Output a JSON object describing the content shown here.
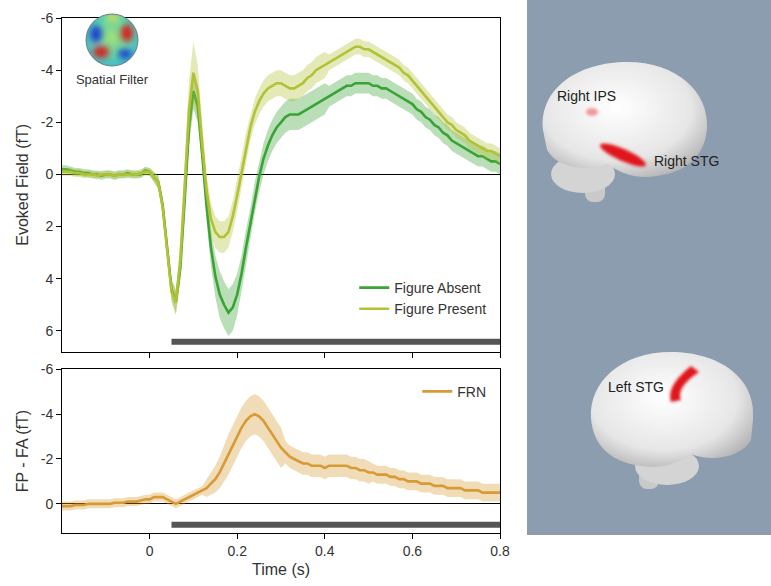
{
  "chart_data": [
    {
      "type": "line",
      "y_label": "Evoked Field (fT)",
      "x": [
        -0.2,
        -0.19,
        -0.18,
        -0.17,
        -0.16,
        -0.15,
        -0.14,
        -0.13,
        -0.12,
        -0.11,
        -0.1,
        -0.09,
        -0.08,
        -0.07,
        -0.06,
        -0.05,
        -0.04,
        -0.03,
        -0.02,
        -0.01,
        0,
        0.01,
        0.02,
        0.03,
        0.04,
        0.05,
        0.06,
        0.07,
        0.08,
        0.09,
        0.1,
        0.11,
        0.12,
        0.13,
        0.14,
        0.15,
        0.16,
        0.17,
        0.18,
        0.19,
        0.2,
        0.21,
        0.22,
        0.23,
        0.24,
        0.25,
        0.26,
        0.27,
        0.28,
        0.29,
        0.3,
        0.31,
        0.32,
        0.33,
        0.34,
        0.35,
        0.36,
        0.37,
        0.38,
        0.39,
        0.4,
        0.41,
        0.42,
        0.43,
        0.44,
        0.45,
        0.46,
        0.47,
        0.48,
        0.49,
        0.5,
        0.51,
        0.52,
        0.53,
        0.54,
        0.55,
        0.56,
        0.57,
        0.58,
        0.59,
        0.6,
        0.61,
        0.62,
        0.63,
        0.64,
        0.65,
        0.66,
        0.67,
        0.68,
        0.69,
        0.7,
        0.71,
        0.72,
        0.73,
        0.74,
        0.75,
        0.76,
        0.77,
        0.78,
        0.79,
        0.8
      ],
      "xlim": [
        -0.2,
        0.8
      ],
      "xticks": [
        0,
        0.2,
        0.4,
        0.6,
        0.8
      ],
      "ylim": [
        6.8,
        -6
      ],
      "yticks": [
        -6,
        -4,
        -2,
        0,
        2,
        4,
        6
      ],
      "grid": false,
      "legend": "lower right",
      "tick_labels": "y",
      "significant_interval": [
        0.05,
        0.8
      ],
      "series": [
        {
          "name": "Figure Absent",
          "color": "#3aa335",
          "values": [
            -0.2,
            -0.2,
            -0.15,
            -0.1,
            -0.1,
            -0.05,
            -0.05,
            0,
            0,
            0.05,
            0,
            0,
            0.05,
            0,
            0,
            -0.05,
            0,
            0,
            0,
            -0.15,
            -0.1,
            0.1,
            0.3,
            1.2,
            2.8,
            4.4,
            4.9,
            3.6,
            1,
            -1.8,
            -3.2,
            -2.6,
            -0.8,
            1.2,
            2.8,
            3.9,
            4.6,
            5,
            5.3,
            5.1,
            4.6,
            3.8,
            2.8,
            1.9,
            0.9,
            0.1,
            -0.6,
            -1.1,
            -1.5,
            -1.8,
            -2,
            -2.2,
            -2.3,
            -2.3,
            -2.3,
            -2.4,
            -2.5,
            -2.6,
            -2.7,
            -2.8,
            -2.9,
            -3,
            -3.1,
            -3.2,
            -3.3,
            -3.4,
            -3.4,
            -3.5,
            -3.5,
            -3.5,
            -3.5,
            -3.4,
            -3.4,
            -3.3,
            -3.3,
            -3.2,
            -3.1,
            -3,
            -2.9,
            -2.8,
            -2.7,
            -2.5,
            -2.4,
            -2.2,
            -2.1,
            -1.9,
            -1.8,
            -1.6,
            -1.5,
            -1.3,
            -1.2,
            -1.1,
            -1,
            -0.9,
            -0.8,
            -0.7,
            -0.7,
            -0.6,
            -0.5,
            -0.5,
            -0.4
          ],
          "error": [
            0.15,
            0.15,
            0.15,
            0.15,
            0.15,
            0.15,
            0.15,
            0.15,
            0.15,
            0.15,
            0.15,
            0.15,
            0.15,
            0.15,
            0.15,
            0.15,
            0.15,
            0.15,
            0.15,
            0.15,
            0.15,
            0.2,
            0.25,
            0.3,
            0.35,
            0.4,
            0.45,
            0.5,
            0.6,
            0.7,
            0.7,
            0.6,
            0.5,
            0.6,
            0.7,
            0.8,
            0.9,
            0.9,
            0.9,
            0.9,
            0.8,
            0.7,
            0.7,
            0.6,
            0.6,
            0.6,
            0.6,
            0.6,
            0.6,
            0.6,
            0.6,
            0.6,
            0.6,
            0.6,
            0.6,
            0.6,
            0.6,
            0.6,
            0.6,
            0.6,
            0.6,
            0.4,
            0.4,
            0.4,
            0.4,
            0.4,
            0.4,
            0.4,
            0.4,
            0.4,
            0.4,
            0.4,
            0.4,
            0.4,
            0.4,
            0.4,
            0.4,
            0.4,
            0.4,
            0.4,
            0.4,
            0.4,
            0.4,
            0.4,
            0.4,
            0.4,
            0.4,
            0.4,
            0.4,
            0.4,
            0.4,
            0.4,
            0.4,
            0.4,
            0.4,
            0.4,
            0.4,
            0.4,
            0.4,
            0.4,
            0.4
          ]
        },
        {
          "name": "Figure Present",
          "color": "#b3c135",
          "values": [
            -0.1,
            -0.1,
            -0.1,
            -0.05,
            -0.05,
            0,
            0,
            0,
            0.05,
            0,
            0,
            0,
            0.05,
            0,
            0,
            0,
            0,
            0,
            -0.05,
            -0.1,
            -0.1,
            0.1,
            0.3,
            1.3,
            2.9,
            4.5,
            4.9,
            3.3,
            0.5,
            -2.5,
            -3.9,
            -3.2,
            -1.2,
            0.6,
            1.7,
            2.2,
            2.4,
            2.4,
            2.2,
            1.6,
            0.8,
            -0.1,
            -1,
            -1.8,
            -2.4,
            -2.8,
            -3.1,
            -3.3,
            -3.4,
            -3.5,
            -3.5,
            -3.4,
            -3.3,
            -3.3,
            -3.4,
            -3.5,
            -3.7,
            -3.8,
            -4,
            -4.1,
            -4.2,
            -4.3,
            -4.4,
            -4.5,
            -4.6,
            -4.7,
            -4.8,
            -4.9,
            -4.9,
            -4.8,
            -4.8,
            -4.7,
            -4.6,
            -4.5,
            -4.4,
            -4.3,
            -4.2,
            -4.1,
            -3.9,
            -3.8,
            -3.6,
            -3.4,
            -3.2,
            -3,
            -2.8,
            -2.6,
            -2.4,
            -2.2,
            -2,
            -1.9,
            -1.7,
            -1.6,
            -1.5,
            -1.3,
            -1.2,
            -1.1,
            -1,
            -0.9,
            -0.9,
            -0.8,
            -0.7
          ],
          "error": [
            0.15,
            0.15,
            0.15,
            0.15,
            0.15,
            0.15,
            0.15,
            0.15,
            0.15,
            0.15,
            0.15,
            0.15,
            0.15,
            0.15,
            0.15,
            0.15,
            0.15,
            0.15,
            0.15,
            0.15,
            0.15,
            0.2,
            0.25,
            0.3,
            0.35,
            0.4,
            0.5,
            0.7,
            0.9,
            1.1,
            1.2,
            1,
            0.8,
            0.6,
            0.6,
            0.6,
            0.6,
            0.6,
            0.6,
            0.6,
            0.6,
            0.6,
            0.6,
            0.5,
            0.5,
            0.5,
            0.5,
            0.5,
            0.5,
            0.5,
            0.5,
            0.5,
            0.5,
            0.5,
            0.5,
            0.5,
            0.5,
            0.5,
            0.5,
            0.5,
            0.5,
            0.3,
            0.3,
            0.3,
            0.3,
            0.3,
            0.3,
            0.3,
            0.3,
            0.3,
            0.3,
            0.3,
            0.3,
            0.3,
            0.3,
            0.3,
            0.3,
            0.3,
            0.3,
            0.3,
            0.3,
            0.3,
            0.3,
            0.3,
            0.3,
            0.3,
            0.3,
            0.3,
            0.3,
            0.3,
            0.3,
            0.3,
            0.3,
            0.3,
            0.3,
            0.3,
            0.3,
            0.3,
            0.3,
            0.3,
            0.3
          ]
        }
      ]
    },
    {
      "type": "line",
      "x_label": "Time (s)",
      "y_label": "FP - FA (fT)",
      "x": [
        -0.2,
        -0.19,
        -0.18,
        -0.17,
        -0.16,
        -0.15,
        -0.14,
        -0.13,
        -0.12,
        -0.11,
        -0.1,
        -0.09,
        -0.08,
        -0.07,
        -0.06,
        -0.05,
        -0.04,
        -0.03,
        -0.02,
        -0.01,
        0,
        0.01,
        0.02,
        0.03,
        0.04,
        0.05,
        0.06,
        0.07,
        0.08,
        0.09,
        0.1,
        0.11,
        0.12,
        0.13,
        0.14,
        0.15,
        0.16,
        0.17,
        0.18,
        0.19,
        0.2,
        0.21,
        0.22,
        0.23,
        0.24,
        0.25,
        0.26,
        0.27,
        0.28,
        0.29,
        0.3,
        0.31,
        0.32,
        0.33,
        0.34,
        0.35,
        0.36,
        0.37,
        0.38,
        0.39,
        0.4,
        0.41,
        0.42,
        0.43,
        0.44,
        0.45,
        0.46,
        0.47,
        0.48,
        0.49,
        0.5,
        0.51,
        0.52,
        0.53,
        0.54,
        0.55,
        0.56,
        0.57,
        0.58,
        0.59,
        0.6,
        0.61,
        0.62,
        0.63,
        0.64,
        0.65,
        0.66,
        0.67,
        0.68,
        0.69,
        0.7,
        0.71,
        0.72,
        0.73,
        0.74,
        0.75,
        0.76,
        0.77,
        0.78,
        0.79,
        0.8
      ],
      "xlim": [
        -0.2,
        0.8
      ],
      "xticks": [
        0,
        0.2,
        0.4,
        0.6,
        0.8
      ],
      "ylim": [
        1.3,
        -6
      ],
      "yticks": [
        -6,
        -4,
        -2,
        0
      ],
      "grid": false,
      "legend": "upper right",
      "significant_interval": [
        0.05,
        0.8
      ],
      "series": [
        {
          "name": "FRN",
          "color": "#d89a35",
          "values": [
            0.1,
            0.1,
            0.1,
            0.05,
            0.05,
            0.05,
            0,
            0,
            0,
            0,
            0,
            0,
            -0.05,
            -0.05,
            -0.05,
            -0.1,
            -0.1,
            -0.1,
            -0.15,
            -0.2,
            -0.2,
            -0.3,
            -0.3,
            -0.3,
            -0.2,
            -0.1,
            0,
            -0.1,
            -0.2,
            -0.3,
            -0.4,
            -0.5,
            -0.6,
            -0.7,
            -0.9,
            -1.1,
            -1.4,
            -1.8,
            -2.2,
            -2.6,
            -3,
            -3.4,
            -3.7,
            -3.9,
            -4,
            -3.9,
            -3.7,
            -3.4,
            -3.1,
            -2.8,
            -2.5,
            -2.3,
            -2.1,
            -2,
            -1.9,
            -1.8,
            -1.8,
            -1.7,
            -1.7,
            -1.7,
            -1.6,
            -1.7,
            -1.7,
            -1.7,
            -1.7,
            -1.7,
            -1.6,
            -1.6,
            -1.5,
            -1.5,
            -1.4,
            -1.4,
            -1.3,
            -1.3,
            -1.3,
            -1.2,
            -1.2,
            -1.1,
            -1.1,
            -1,
            -1,
            -1,
            -0.9,
            -0.9,
            -0.9,
            -0.8,
            -0.8,
            -0.8,
            -0.7,
            -0.7,
            -0.7,
            -0.7,
            -0.6,
            -0.6,
            -0.6,
            -0.6,
            -0.5,
            -0.5,
            -0.5,
            -0.5,
            -0.5
          ],
          "error": [
            0.2,
            0.2,
            0.2,
            0.2,
            0.2,
            0.2,
            0.2,
            0.2,
            0.2,
            0.2,
            0.2,
            0.2,
            0.2,
            0.2,
            0.2,
            0.2,
            0.2,
            0.2,
            0.2,
            0.2,
            0.2,
            0.2,
            0.2,
            0.2,
            0.2,
            0.2,
            0.2,
            0.2,
            0.2,
            0.2,
            0.2,
            0.2,
            0.2,
            0.4,
            0.5,
            0.6,
            0.7,
            0.8,
            0.9,
            0.9,
            0.9,
            0.9,
            0.9,
            0.9,
            0.9,
            0.9,
            0.9,
            0.9,
            0.9,
            0.9,
            0.9,
            0.5,
            0.5,
            0.5,
            0.5,
            0.5,
            0.5,
            0.5,
            0.5,
            0.5,
            0.5,
            0.5,
            0.5,
            0.5,
            0.5,
            0.5,
            0.5,
            0.5,
            0.5,
            0.5,
            0.5,
            0.4,
            0.4,
            0.4,
            0.4,
            0.4,
            0.4,
            0.4,
            0.4,
            0.4,
            0.4,
            0.4,
            0.4,
            0.4,
            0.4,
            0.4,
            0.4,
            0.4,
            0.4,
            0.4,
            0.4,
            0.4,
            0.4,
            0.4,
            0.4,
            0.4,
            0.4,
            0.4,
            0.4,
            0.4,
            0.4
          ]
        }
      ]
    }
  ],
  "inset": {
    "label": "Spatial Filter"
  },
  "brain_views": [
    {
      "labels": [
        "Right IPS",
        "Right STG"
      ]
    },
    {
      "labels": [
        "Left STG"
      ]
    }
  ]
}
